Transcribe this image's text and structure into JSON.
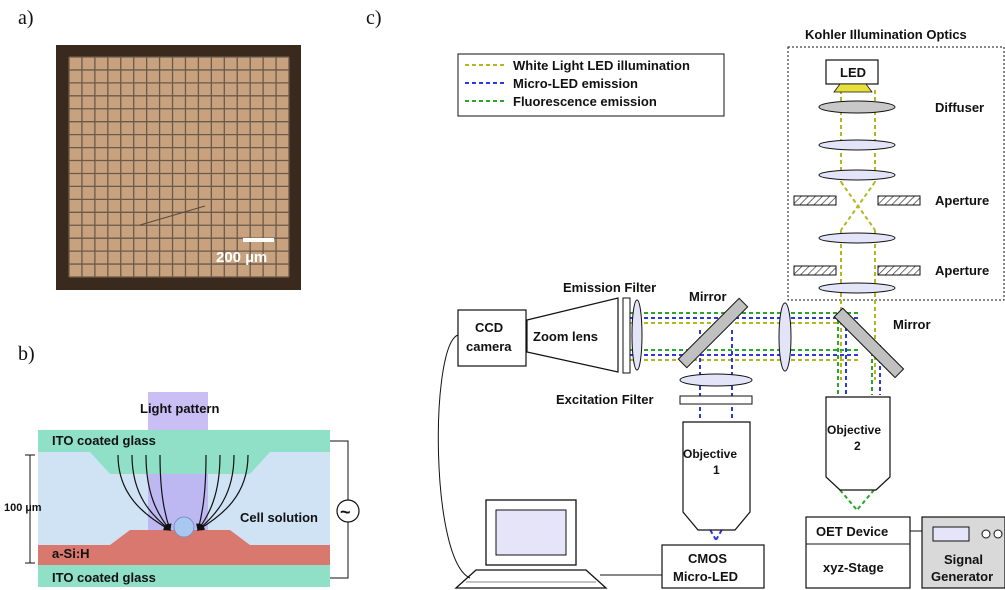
{
  "panel_labels": {
    "a": "a)",
    "b": "b)",
    "c": "c)"
  },
  "panel_a": {
    "scale_bar": "200 µm",
    "colors": {
      "frame": "#3a2a1e",
      "cell": "#c8a27e",
      "grid": "#6a5a4a"
    }
  },
  "panel_b": {
    "light_pattern": "Light pattern",
    "top_glass": "ITO coated glass",
    "bottom_glass": "ITO coated glass",
    "asih": "a-Si:H",
    "gap": "100 µm",
    "cell_solution": "Cell solution",
    "ac_symbol": "~",
    "colors": {
      "glass": "#8fe0c6",
      "solution": "#cfe3f5",
      "asi": "#d9786e",
      "light": "#b7a9f0"
    }
  },
  "panel_c": {
    "legend": [
      {
        "label": "White Light LED illumination",
        "color": "#b5b520"
      },
      {
        "label": "Micro-LED emission",
        "color": "#2a3adf"
      },
      {
        "label": "Fluorescence emission",
        "color": "#2aa62a"
      }
    ],
    "kohler_title": "Kohler Illumination Optics",
    "led": "LED",
    "diffuser": "Diffuser",
    "aperture1": "Aperture",
    "aperture2": "Aperture",
    "mirror_right": "Mirror",
    "mirror_left": "Mirror",
    "emission_filter": "Emission Filter",
    "excitation_filter": "Excitation Filter",
    "ccd": [
      "CCD",
      "camera"
    ],
    "zoom_lens": "Zoom lens",
    "objective1": [
      "Objective",
      "1"
    ],
    "objective2": [
      "Objective",
      "2"
    ],
    "cmos": [
      "CMOS",
      "Micro-LED"
    ],
    "oet_device": "OET Device",
    "xyz_stage": "xyz-Stage",
    "signal_generator": [
      "Signal",
      "Generator"
    ]
  }
}
